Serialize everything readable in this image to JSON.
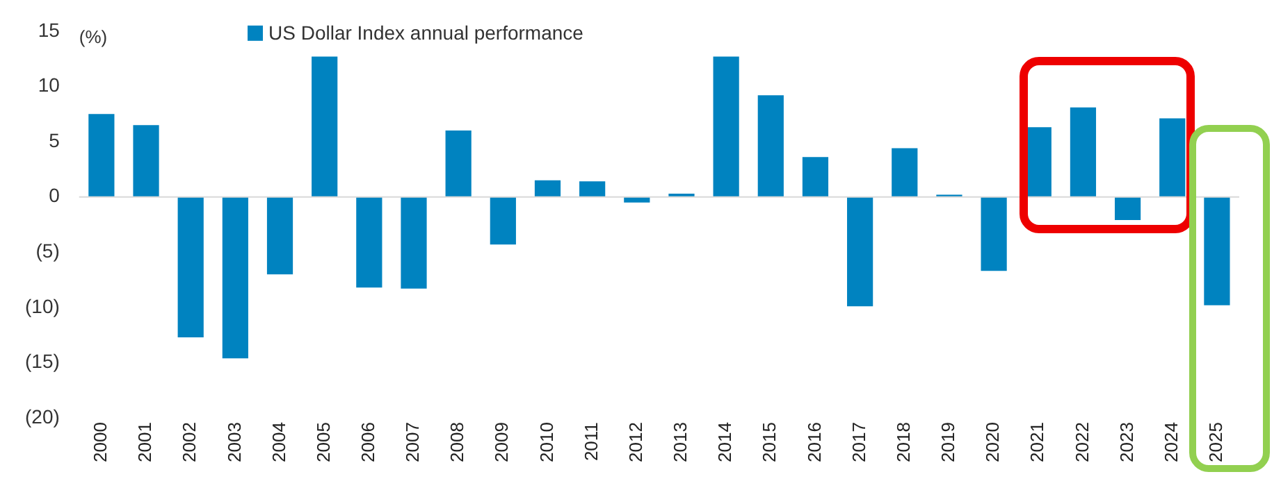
{
  "chart_data": {
    "type": "bar",
    "ylabel": "(%)",
    "categories": [
      "2000",
      "2001",
      "2002",
      "2003",
      "2004",
      "2005",
      "2006",
      "2007",
      "2008",
      "2009",
      "2010",
      "2011",
      "2012",
      "2013",
      "2014",
      "2015",
      "2016",
      "2017",
      "2018",
      "2019",
      "2020",
      "2021",
      "2022",
      "2023",
      "2024",
      "2025"
    ],
    "series": [
      {
        "name": "US Dollar Index annual performance",
        "color": "#0083c0",
        "values": [
          7.5,
          6.5,
          -12.7,
          -14.6,
          -7.0,
          12.7,
          -8.2,
          -8.3,
          6.0,
          -4.3,
          1.5,
          1.4,
          -0.5,
          0.3,
          12.7,
          9.2,
          3.6,
          -9.9,
          4.4,
          0.2,
          -6.7,
          6.3,
          8.1,
          -2.1,
          7.1,
          -9.8
        ]
      }
    ],
    "ylim": [
      -20,
      15
    ],
    "yticks": [
      {
        "value": -20,
        "label": "(20)"
      },
      {
        "value": -15,
        "label": "(15)"
      },
      {
        "value": -10,
        "label": "(10)"
      },
      {
        "value": -5,
        "label": "(5)"
      },
      0,
      5,
      10,
      15
    ],
    "ref_lines": [
      {
        "axis": "y",
        "value": 0,
        "color": "#d9d9d9"
      }
    ],
    "grid": false,
    "legend": "top"
  }
}
